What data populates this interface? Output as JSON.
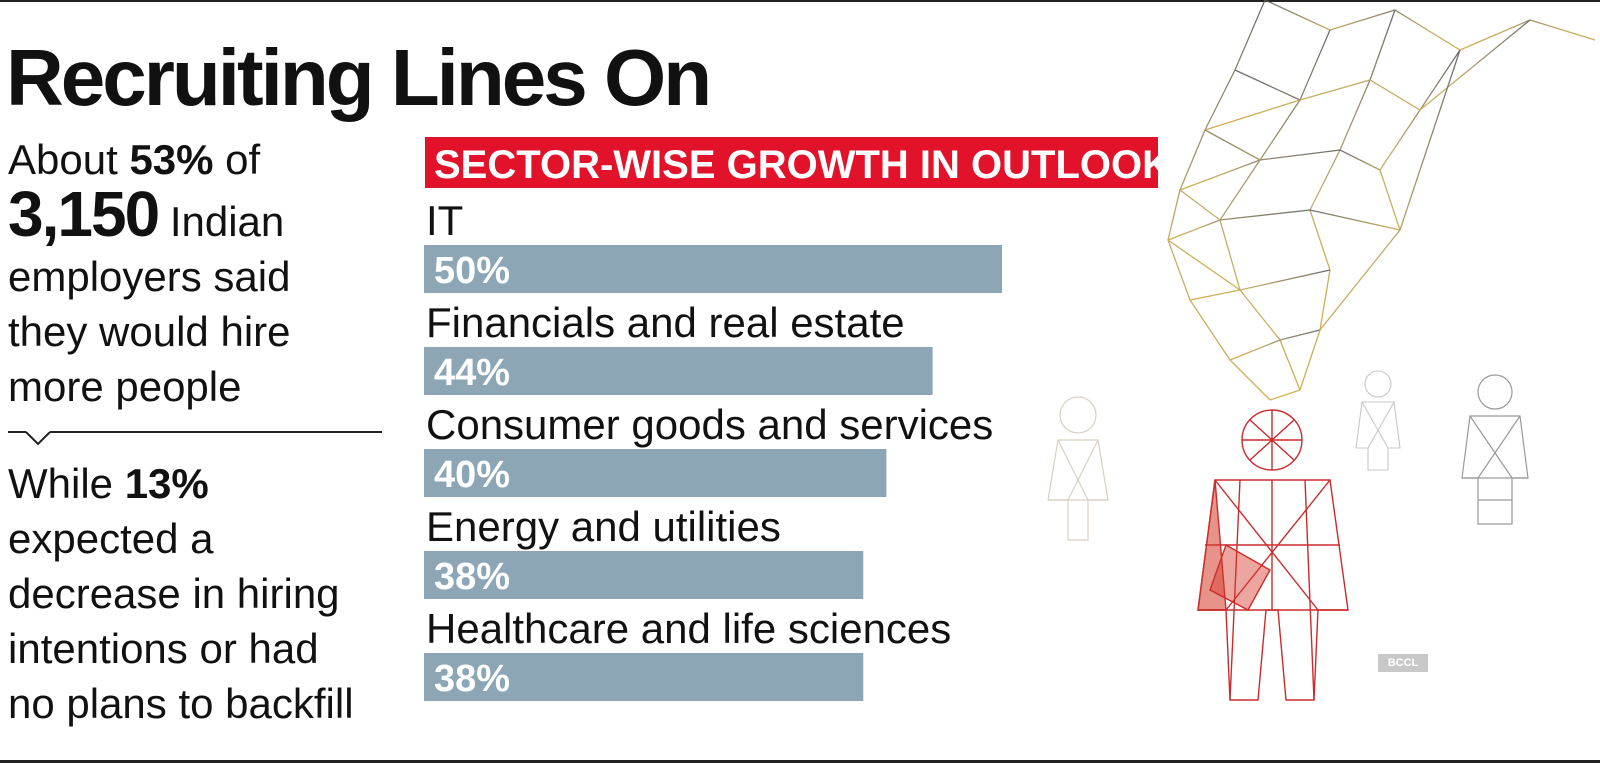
{
  "title": "Recruiting Lines On",
  "left": {
    "block1": {
      "l1_pre": "About ",
      "l1_bold": "53%",
      "l1_post": " of",
      "l2_big": "3,150",
      "l2_post": " Indian",
      "l3": "employers said",
      "l4": "they would hire",
      "l5": "more people"
    },
    "block2": {
      "l1_pre": "While ",
      "l1_bold": "13%",
      "l2": "expected a",
      "l3": "decrease in hiring",
      "l4": "intentions or had",
      "l5": "no plans to backfill"
    }
  },
  "credit": "BCCL",
  "colors": {
    "bar": "#8ca6b5",
    "banner": "#e1122a",
    "text": "#111111"
  },
  "chart_data": {
    "type": "bar",
    "orientation": "horizontal",
    "title": "SECTOR-WISE GROWTH IN OUTLOOK",
    "categories": [
      "IT",
      "Financials and real estate",
      "Consumer goods and services",
      "Energy and utilities",
      "Healthcare and life sciences"
    ],
    "values": [
      50,
      44,
      40,
      38,
      38
    ],
    "value_labels": [
      "50%",
      "44%",
      "40%",
      "38%",
      "38%"
    ],
    "unit": "%",
    "grid": false,
    "legend": false
  }
}
